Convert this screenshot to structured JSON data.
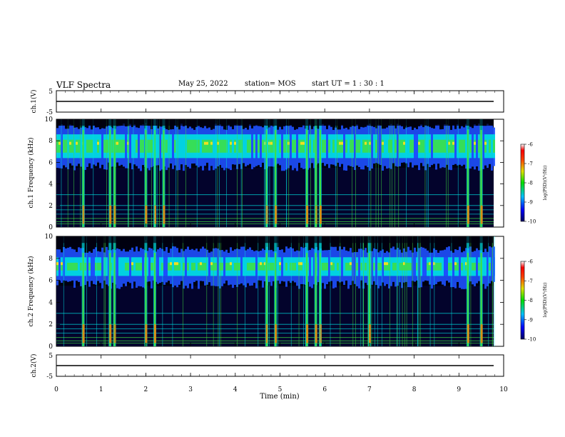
{
  "header": {
    "title": "VLF Spectra",
    "date": "May 25, 2022",
    "station": "station= MOS",
    "start_ut": "start  UT =  1 : 30 : 1"
  },
  "chart_data": [
    {
      "type": "line",
      "panel": "ch1-voltage",
      "ylabel": "ch.1(V)",
      "ylim": [
        -5,
        5
      ],
      "yticks": [
        "5",
        "-5"
      ],
      "x": [
        0,
        10
      ],
      "series": [
        {
          "values": [
            -2,
            -2
          ]
        }
      ],
      "color": "#000000"
    },
    {
      "type": "heatmap",
      "panel": "ch1-spectrogram",
      "ylabel": "ch.1 Frequency (kHz)",
      "ylim": [
        0,
        10
      ],
      "yticks": [
        "0",
        "2",
        "4",
        "6",
        "8",
        "10"
      ],
      "xlim": [
        0,
        10
      ],
      "colorbar": {
        "label": "log(PSD)(V²/Hz)",
        "range": [
          -10,
          -6
        ],
        "ticks": [
          "-6",
          "-7",
          "-8",
          "-9",
          "-10"
        ]
      },
      "band_khz": [
        6,
        9
      ],
      "burst_times_min": [
        0.6,
        1.2,
        1.3,
        2.0,
        2.2,
        2.4,
        4.7,
        4.9,
        5.6,
        5.8,
        5.9,
        9.2,
        9.5
      ]
    },
    {
      "type": "heatmap",
      "panel": "ch2-spectrogram",
      "ylabel": "ch.2 Frequency (kHz)",
      "ylim": [
        0,
        10
      ],
      "yticks": [
        "0",
        "2",
        "4",
        "6",
        "8",
        "10"
      ],
      "xlim": [
        0,
        10
      ],
      "colorbar": {
        "label": "log(PSD)(V²/Hz)",
        "range": [
          -10,
          -6
        ],
        "ticks": [
          "-6",
          "-7",
          "-8",
          "-9",
          "-10"
        ]
      },
      "band_khz": [
        6,
        8.5
      ],
      "burst_times_min": [
        0.6,
        1.2,
        1.3,
        2.0,
        2.2,
        4.7,
        4.9,
        5.6,
        5.8,
        5.9,
        7.0,
        9.2,
        9.5
      ]
    },
    {
      "type": "line",
      "panel": "ch2-voltage",
      "ylabel": "ch.2(V)",
      "ylim": [
        -5,
        5
      ],
      "yticks": [
        "5",
        "-5"
      ],
      "x": [
        0,
        10
      ],
      "series": [
        {
          "values": [
            -2,
            -2
          ]
        }
      ],
      "color": "#000000"
    }
  ],
  "xaxis": {
    "label": "Time  (min)",
    "ticks": [
      "0",
      "1",
      "2",
      "3",
      "4",
      "5",
      "6",
      "7",
      "8",
      "9",
      "10"
    ],
    "range": [
      0,
      10
    ]
  },
  "colors": {
    "background": "#000010",
    "dark_blue": "#0a0a60",
    "blue": "#1e50ff",
    "cyan": "#00e0e0",
    "green": "#40e040",
    "yellow": "#f0e020",
    "orange": "#ff8000",
    "red": "#e01010"
  }
}
